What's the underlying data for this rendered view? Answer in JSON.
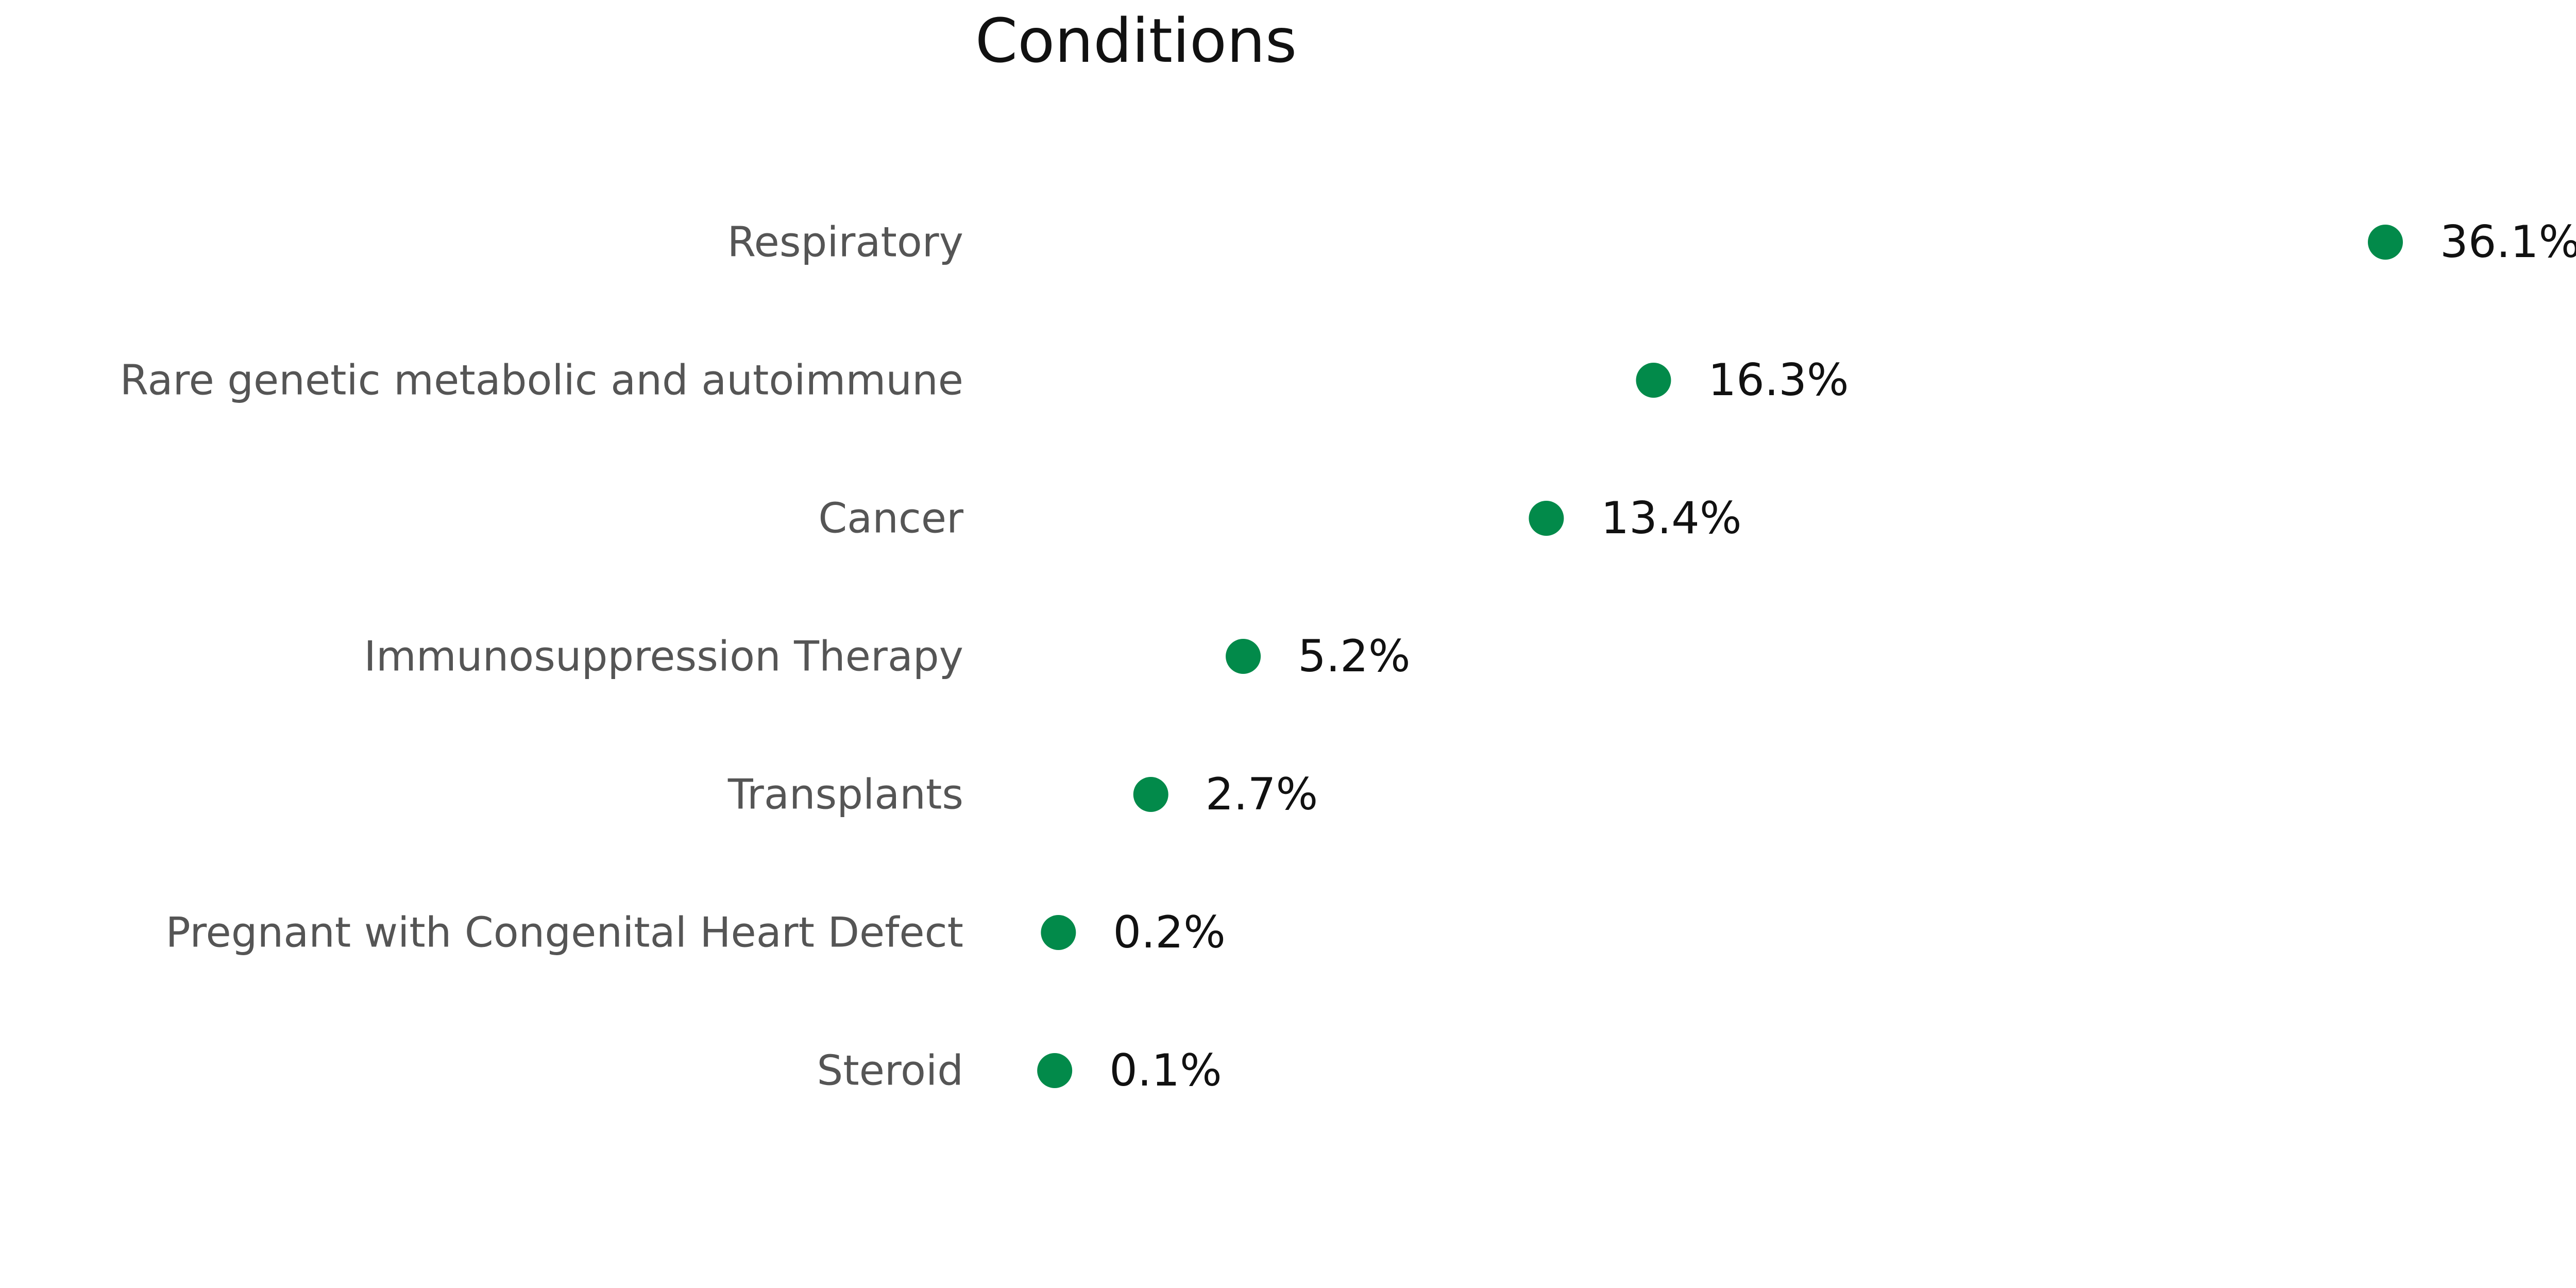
{
  "chart_data": {
    "type": "scatter",
    "title": "Conditions",
    "categories": [
      "Respiratory",
      "Rare genetic metabolic and autoimmune",
      "Cancer",
      "Immunosuppression Therapy",
      "Transplants",
      "Pregnant with Congenital Heart Defect",
      "Steroid"
    ],
    "values": [
      36.1,
      16.3,
      13.4,
      5.2,
      2.7,
      0.2,
      0.1
    ],
    "value_labels": [
      "36.1%",
      "16.3%",
      "13.4%",
      "5.2%",
      "2.7%",
      "0.2%",
      "0.1%"
    ],
    "unit": "%",
    "marker_color": "#028a4a",
    "xlabel": "",
    "ylabel": "",
    "xlim": [
      0,
      36.1
    ],
    "grid": false,
    "legend": "none"
  }
}
